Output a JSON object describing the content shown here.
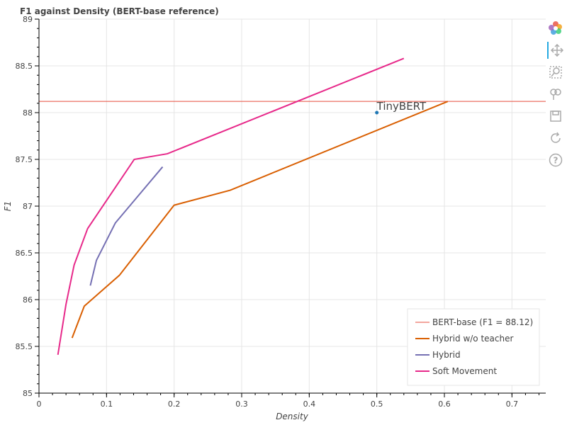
{
  "chart_data": {
    "type": "line",
    "title": "F1 against Density (BERT-base reference)",
    "xlabel": "Density",
    "ylabel": "F1",
    "xlim": [
      0,
      0.75
    ],
    "ylim": [
      85,
      89
    ],
    "xticks": [
      0,
      0.1,
      0.2,
      0.3,
      0.4,
      0.5,
      0.6,
      0.7
    ],
    "xtick_labels": [
      "0",
      "0.1",
      "0.2",
      "0.3",
      "0.4",
      "0.5",
      "0.6",
      "0.7"
    ],
    "yticks": [
      85,
      85.5,
      86,
      86.5,
      87,
      87.5,
      88,
      88.5,
      89
    ],
    "ytick_labels": [
      "85",
      "85.5",
      "86",
      "86.5",
      "87",
      "87.5",
      "88",
      "88.5",
      "89"
    ],
    "grid": true,
    "legend_position": "bottom-right",
    "reference_line": {
      "name": "BERT-base (F1 = 88.12)",
      "y": 88.12,
      "color": "#e74c3c"
    },
    "series": [
      {
        "name": "Hybrid w/o teacher",
        "color": "#d95f02",
        "x": [
          0.049,
          0.067,
          0.119,
          0.2,
          0.283,
          0.605
        ],
        "y": [
          85.59,
          85.93,
          86.26,
          87.01,
          87.17,
          88.12
        ]
      },
      {
        "name": "Hybrid",
        "color": "#7570b3",
        "x": [
          0.076,
          0.085,
          0.113,
          0.183
        ],
        "y": [
          86.15,
          86.42,
          86.82,
          87.42
        ]
      },
      {
        "name": "Soft Movement",
        "color": "#e7298a",
        "x": [
          0.028,
          0.04,
          0.052,
          0.072,
          0.141,
          0.19,
          0.54
        ],
        "y": [
          85.41,
          85.95,
          86.37,
          86.76,
          87.5,
          87.56,
          88.58
        ]
      }
    ],
    "points": [
      {
        "label": "TinyBERT",
        "x": 0.5,
        "y": 88.0,
        "color": "#1f77b4"
      }
    ]
  },
  "toolbar": {
    "items": [
      {
        "name": "bokeh-logo-icon"
      },
      {
        "name": "pan-icon"
      },
      {
        "name": "box-zoom-icon"
      },
      {
        "name": "wheel-zoom-icon"
      },
      {
        "name": "save-icon"
      },
      {
        "name": "reset-icon"
      },
      {
        "name": "help-icon"
      }
    ]
  }
}
